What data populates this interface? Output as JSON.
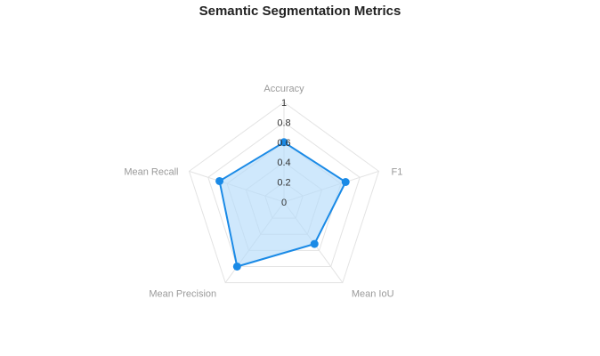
{
  "chart_data": {
    "type": "radar",
    "title": "Semantic Segmentation Metrics",
    "axes": [
      "Accuracy",
      "F1",
      "Mean IoU",
      "Mean Precision",
      "Mean Recall"
    ],
    "series": [
      {
        "values": [
          0.6,
          0.65,
          0.52,
          0.8,
          0.68
        ]
      }
    ],
    "ticks": [
      "0",
      "0.2",
      "0.4",
      "0.6",
      "0.8",
      "1"
    ],
    "range": [
      0,
      1
    ],
    "grid": true,
    "colors": {
      "line": "#1a8ae6",
      "fill": "#b5dcfa",
      "grid": "#e3e3e3"
    }
  }
}
